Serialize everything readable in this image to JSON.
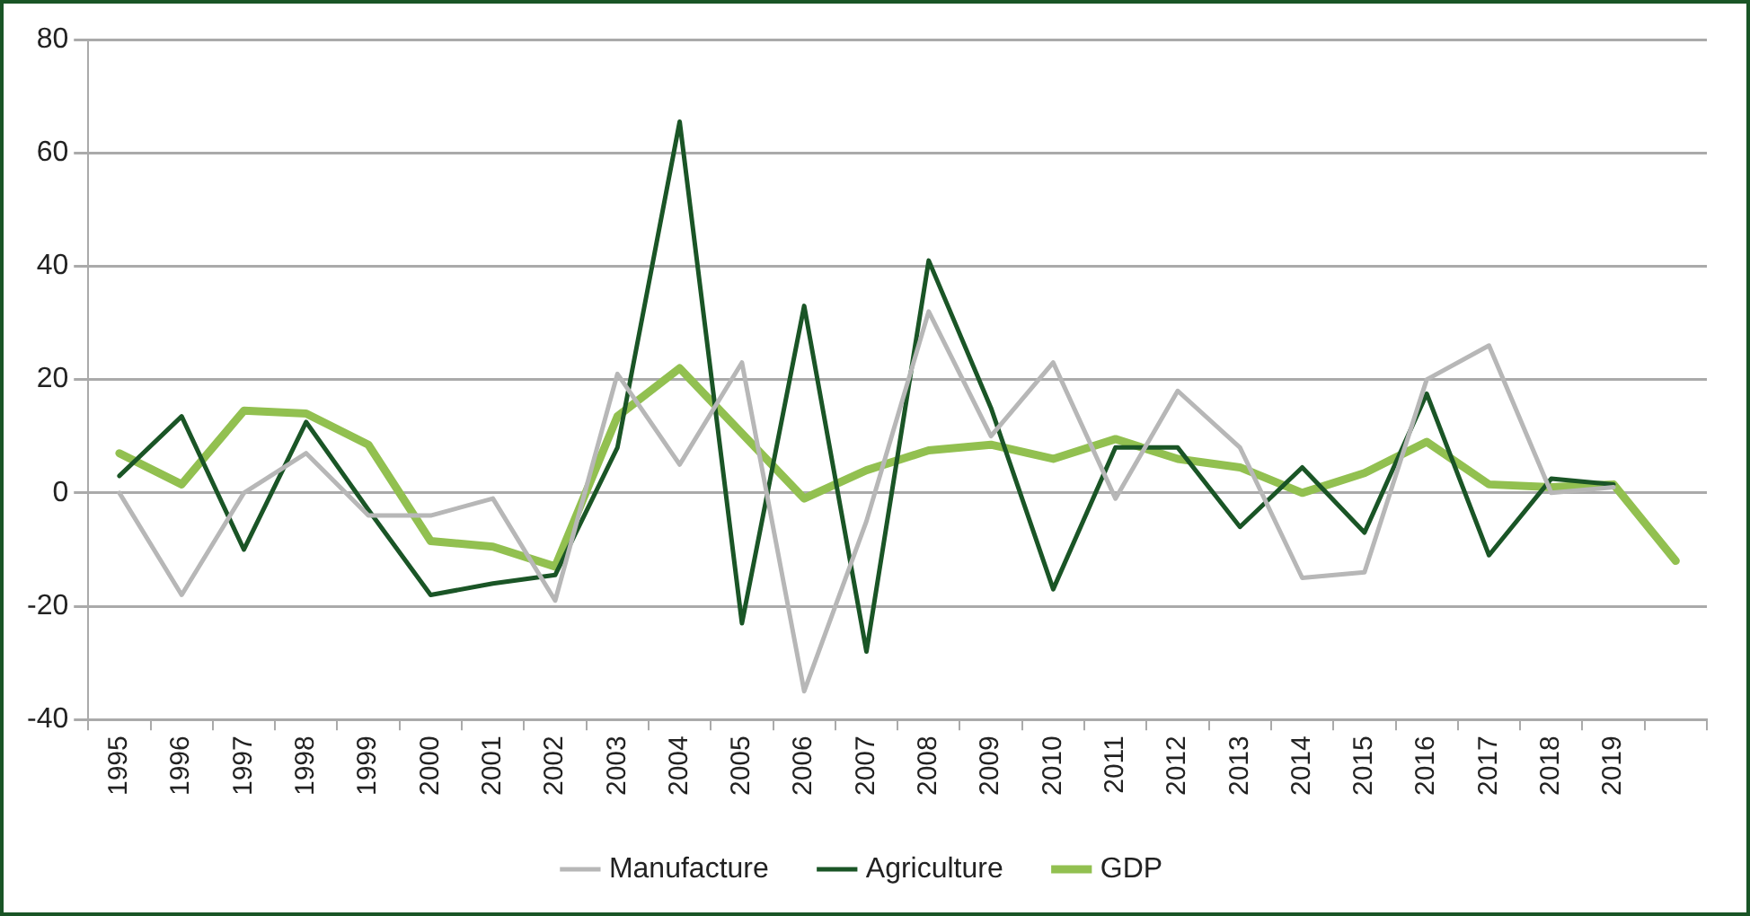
{
  "chart_data": {
    "type": "line",
    "categories": [
      "1995",
      "1996",
      "1997",
      "1998",
      "1999",
      "2000",
      "2001",
      "2002",
      "2003",
      "2004",
      "2005",
      "2006",
      "2007",
      "2008",
      "2009",
      "2010",
      "2011",
      "2012",
      "2013",
      "2014",
      "2015",
      "2016",
      "2017",
      "2018",
      "2019",
      null
    ],
    "series": [
      {
        "name": "Manufacture",
        "color": "#b7b7b7",
        "values": [
          0,
          -18,
          0,
          7,
          -4,
          -4,
          -1,
          -19,
          21,
          5,
          23,
          -35,
          -5,
          32,
          10,
          23,
          -1,
          18,
          8,
          -15,
          -14,
          20,
          26,
          0,
          1,
          null
        ]
      },
      {
        "name": "Agriculture",
        "color": "#1a5526",
        "values": [
          3,
          13.5,
          -10,
          12.5,
          -3,
          -18,
          -16,
          -14.5,
          8,
          65.5,
          -23,
          33,
          -28,
          41,
          15,
          -17,
          8,
          8,
          -6,
          4.5,
          -7,
          17.5,
          -11,
          2.5,
          1.5,
          null
        ]
      },
      {
        "name": "GDP",
        "color": "#92c050",
        "values": [
          7,
          1.5,
          14.5,
          14,
          8.5,
          -8.5,
          -9.5,
          -13,
          13.5,
          22,
          10.5,
          -1,
          4,
          7.5,
          8.5,
          6,
          9.5,
          6,
          4.5,
          0,
          3.5,
          9,
          1.5,
          1,
          1.5,
          -12
        ]
      }
    ],
    "ylim": [
      -40,
      80
    ],
    "yticks": [
      -40,
      -20,
      0,
      20,
      40,
      60,
      80
    ],
    "grid": "y",
    "legend": "bottom",
    "marker": "none",
    "line_style": "solid"
  }
}
